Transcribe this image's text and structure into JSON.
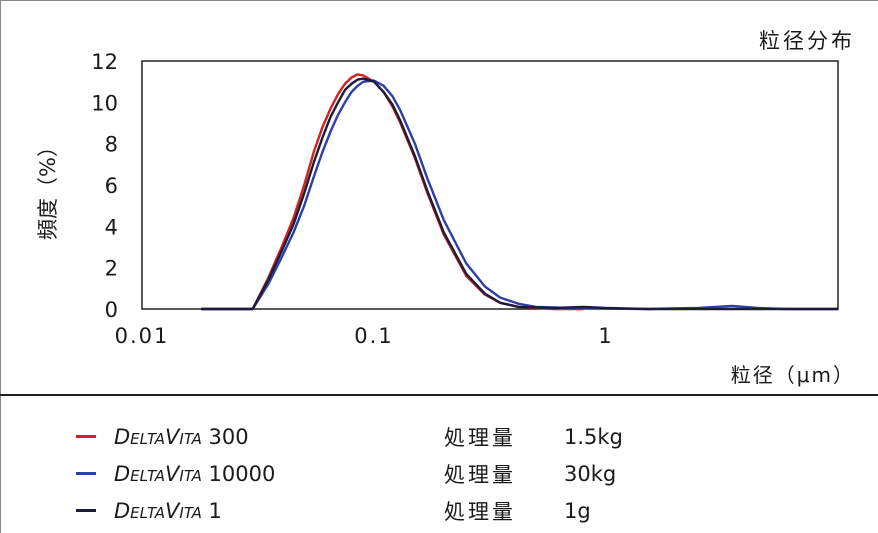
{
  "chart_data": {
    "type": "line",
    "title": "粒径分布",
    "xlabel": "粒径（μm）",
    "ylabel": "頻度（%）",
    "xscale": "log",
    "xlim": [
      0.01,
      10
    ],
    "ylim": [
      0,
      12
    ],
    "x_ticks": [
      "0.01",
      "0.1",
      "1"
    ],
    "y_ticks": [
      "0",
      "2",
      "4",
      "6",
      "8",
      "10",
      "12"
    ],
    "grid": "top-only",
    "series": [
      {
        "name": "DELTAVITA 300",
        "brand": "DeltaVita",
        "suffix": " 300",
        "processing_label": "処理量",
        "amount": "1.5kg",
        "color": "#d42020",
        "points": [
          [
            0.018,
            0
          ],
          [
            0.03,
            0
          ],
          [
            0.035,
            1.5
          ],
          [
            0.04,
            3.0
          ],
          [
            0.045,
            4.4
          ],
          [
            0.05,
            6.0
          ],
          [
            0.055,
            7.6
          ],
          [
            0.06,
            8.8
          ],
          [
            0.065,
            9.7
          ],
          [
            0.07,
            10.4
          ],
          [
            0.075,
            10.9
          ],
          [
            0.08,
            11.2
          ],
          [
            0.085,
            11.35
          ],
          [
            0.09,
            11.3
          ],
          [
            0.1,
            11.0
          ],
          [
            0.11,
            10.5
          ],
          [
            0.12,
            9.8
          ],
          [
            0.13,
            9.0
          ],
          [
            0.15,
            7.3
          ],
          [
            0.17,
            5.6
          ],
          [
            0.2,
            3.6
          ],
          [
            0.25,
            1.6
          ],
          [
            0.3,
            0.7
          ],
          [
            0.35,
            0.3
          ],
          [
            0.42,
            0.1
          ],
          [
            0.6,
            0
          ],
          [
            0.8,
            0
          ]
        ]
      },
      {
        "name": "DELTAVITA 10000",
        "brand": "DeltaVita",
        "suffix": " 10000",
        "processing_label": "処理量",
        "amount": "30kg",
        "color": "#2b3fa8",
        "points": [
          [
            0.018,
            0
          ],
          [
            0.03,
            0
          ],
          [
            0.035,
            1.2
          ],
          [
            0.04,
            2.5
          ],
          [
            0.045,
            3.7
          ],
          [
            0.05,
            5.0
          ],
          [
            0.055,
            6.4
          ],
          [
            0.06,
            7.6
          ],
          [
            0.065,
            8.6
          ],
          [
            0.07,
            9.4
          ],
          [
            0.075,
            10.0
          ],
          [
            0.08,
            10.5
          ],
          [
            0.085,
            10.8
          ],
          [
            0.09,
            11.0
          ],
          [
            0.1,
            11.05
          ],
          [
            0.11,
            10.8
          ],
          [
            0.12,
            10.3
          ],
          [
            0.13,
            9.6
          ],
          [
            0.15,
            8.0
          ],
          [
            0.17,
            6.3
          ],
          [
            0.2,
            4.3
          ],
          [
            0.25,
            2.2
          ],
          [
            0.3,
            1.1
          ],
          [
            0.35,
            0.55
          ],
          [
            0.42,
            0.25
          ],
          [
            0.5,
            0.1
          ],
          [
            0.7,
            0.05
          ],
          [
            1.0,
            0.02
          ],
          [
            1.5,
            0.0
          ],
          [
            2.5,
            0.05
          ],
          [
            3.5,
            0.15
          ],
          [
            4.5,
            0.05
          ],
          [
            6.0,
            0
          ],
          [
            10,
            0
          ]
        ]
      },
      {
        "name": "DELTAVITA 1",
        "brand": "DeltaVita",
        "suffix": " 1",
        "processing_label": "処理量",
        "amount": "1g",
        "color": "#1c1c38",
        "points": [
          [
            0.018,
            0
          ],
          [
            0.03,
            0
          ],
          [
            0.035,
            1.4
          ],
          [
            0.04,
            2.8
          ],
          [
            0.045,
            4.1
          ],
          [
            0.05,
            5.6
          ],
          [
            0.055,
            7.1
          ],
          [
            0.06,
            8.3
          ],
          [
            0.065,
            9.3
          ],
          [
            0.07,
            10.0
          ],
          [
            0.075,
            10.6
          ],
          [
            0.08,
            10.9
          ],
          [
            0.085,
            11.1
          ],
          [
            0.09,
            11.15
          ],
          [
            0.1,
            11.0
          ],
          [
            0.11,
            10.5
          ],
          [
            0.12,
            9.9
          ],
          [
            0.13,
            9.1
          ],
          [
            0.15,
            7.4
          ],
          [
            0.17,
            5.7
          ],
          [
            0.2,
            3.7
          ],
          [
            0.25,
            1.7
          ],
          [
            0.3,
            0.75
          ],
          [
            0.35,
            0.3
          ],
          [
            0.42,
            0.1
          ],
          [
            0.6,
            0.05
          ],
          [
            0.8,
            0.1
          ],
          [
            1.0,
            0.05
          ],
          [
            1.5,
            0
          ],
          [
            10,
            0
          ]
        ]
      }
    ]
  }
}
